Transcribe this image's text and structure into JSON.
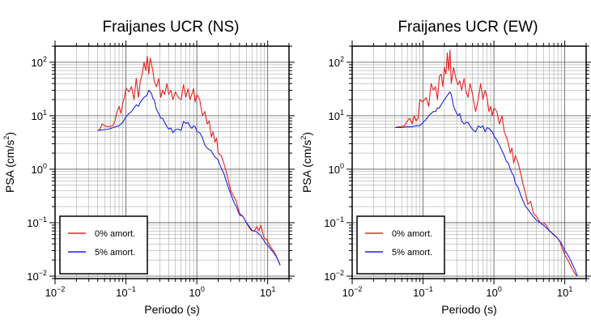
{
  "chart_data": [
    {
      "type": "line",
      "title": "Fraijanes UCR (NS)",
      "xlabel": "Periodo (s)",
      "ylabel_main": "PSA (cm/s",
      "ylabel_sup": "2",
      "ylabel_end": ")",
      "x_scale": "log",
      "y_scale": "log",
      "xlim": [
        0.01,
        20
      ],
      "ylim": [
        0.009,
        200
      ],
      "grid": true,
      "legend_position": "bottom-left",
      "x_ticks": [
        {
          "base": "10",
          "exp": "−2"
        },
        {
          "base": "10",
          "exp": "−1"
        },
        {
          "base": "10",
          "exp": "0"
        },
        {
          "base": "10",
          "exp": "1"
        }
      ],
      "y_ticks": [
        {
          "base": "10",
          "exp": "−2"
        },
        {
          "base": "10",
          "exp": "−1"
        },
        {
          "base": "10",
          "exp": "0"
        },
        {
          "base": "10",
          "exp": "1"
        },
        {
          "base": "10",
          "exp": "2"
        }
      ],
      "series": [
        {
          "name": "0% amort.",
          "color": "#e8231f",
          "x": [
            0.04,
            0.043,
            0.046,
            0.05,
            0.055,
            0.06,
            0.065,
            0.07,
            0.075,
            0.08,
            0.085,
            0.09,
            0.095,
            0.1,
            0.11,
            0.12,
            0.13,
            0.14,
            0.15,
            0.16,
            0.17,
            0.18,
            0.19,
            0.2,
            0.21,
            0.22,
            0.23,
            0.24,
            0.25,
            0.27,
            0.29,
            0.31,
            0.33,
            0.35,
            0.38,
            0.4,
            0.43,
            0.46,
            0.5,
            0.55,
            0.6,
            0.65,
            0.7,
            0.75,
            0.8,
            0.85,
            0.9,
            0.95,
            1.0,
            1.1,
            1.2,
            1.3,
            1.4,
            1.5,
            1.6,
            1.7,
            1.8,
            1.9,
            2.0,
            2.2,
            2.4,
            2.6,
            2.8,
            3.0,
            3.3,
            3.6,
            4.0,
            4.5,
            5.0,
            5.5,
            6.0,
            6.5,
            7.0,
            7.5,
            8.0,
            8.5,
            9.0,
            9.5,
            10.0,
            11.0,
            12.0,
            13.0,
            14.0,
            15.0
          ],
          "y": [
            5.3,
            5.6,
            7,
            6.5,
            6.3,
            6.3,
            6.5,
            8,
            12,
            15,
            11,
            17,
            22,
            33,
            28,
            35,
            20,
            50,
            22,
            45,
            60,
            100,
            70,
            130,
            60,
            120,
            90,
            70,
            45,
            35,
            50,
            22,
            30,
            25,
            40,
            25,
            30,
            20,
            28,
            22,
            20,
            38,
            22,
            32,
            20,
            25,
            32,
            18,
            25,
            20,
            10,
            12,
            7,
            8,
            4,
            5,
            3.2,
            3.8,
            2,
            1.8,
            1.3,
            0.9,
            0.6,
            0.4,
            0.32,
            0.25,
            0.15,
            0.13,
            0.1,
            0.08,
            0.07,
            0.07,
            0.085,
            0.07,
            0.09,
            0.065,
            0.05,
            0.05,
            0.045,
            0.035,
            0.03,
            0.025,
            0.02,
            0.016
          ]
        },
        {
          "name": "5% amort.",
          "color": "#1f23e0",
          "x": [
            0.04,
            0.05,
            0.06,
            0.07,
            0.08,
            0.09,
            0.1,
            0.11,
            0.12,
            0.13,
            0.14,
            0.15,
            0.16,
            0.17,
            0.18,
            0.19,
            0.2,
            0.21,
            0.22,
            0.23,
            0.24,
            0.25,
            0.27,
            0.29,
            0.31,
            0.33,
            0.35,
            0.38,
            0.4,
            0.43,
            0.46,
            0.5,
            0.55,
            0.6,
            0.65,
            0.7,
            0.75,
            0.8,
            0.85,
            0.9,
            0.95,
            1.0,
            1.1,
            1.2,
            1.3,
            1.4,
            1.5,
            1.6,
            1.7,
            1.8,
            1.9,
            2.0,
            2.2,
            2.4,
            2.6,
            2.8,
            3.0,
            3.3,
            3.6,
            4.0,
            4.5,
            5.0,
            5.5,
            6.0,
            6.5,
            7.0,
            7.5,
            8.0,
            8.5,
            9.0,
            9.5,
            10.0,
            11.0,
            12.0,
            13.0,
            14.0,
            15.0
          ],
          "y": [
            5.3,
            5.5,
            5.7,
            6.2,
            6.5,
            7.5,
            9.5,
            11,
            12,
            14,
            16,
            15,
            18,
            20,
            22,
            23,
            25,
            30,
            28,
            26,
            21,
            20,
            13,
            11,
            9,
            9,
            7.5,
            6.3,
            5.6,
            5.9,
            4.8,
            5.5,
            5.6,
            5.3,
            7.8,
            7.2,
            7.5,
            6.4,
            5.8,
            6.5,
            6.2,
            5.1,
            4.8,
            3.9,
            2.8,
            2.5,
            2.3,
            2.2,
            1.9,
            1.7,
            1.6,
            1.5,
            1.05,
            0.85,
            0.6,
            0.45,
            0.35,
            0.25,
            0.2,
            0.14,
            0.13,
            0.1,
            0.085,
            0.072,
            0.07,
            0.067,
            0.062,
            0.058,
            0.05,
            0.045,
            0.04,
            0.038,
            0.032,
            0.028,
            0.024,
            0.02,
            0.016
          ]
        }
      ]
    },
    {
      "type": "line",
      "title": "Fraijanes UCR (EW)",
      "xlabel": "Periodo (s)",
      "ylabel_main": "PSA (cm/s",
      "ylabel_sup": "2",
      "ylabel_end": ")",
      "x_scale": "log",
      "y_scale": "log",
      "xlim": [
        0.01,
        20
      ],
      "ylim": [
        0.009,
        200
      ],
      "grid": true,
      "legend_position": "bottom-left",
      "x_ticks": [
        {
          "base": "10",
          "exp": "−2"
        },
        {
          "base": "10",
          "exp": "−1"
        },
        {
          "base": "10",
          "exp": "0"
        },
        {
          "base": "10",
          "exp": "1"
        }
      ],
      "y_ticks": [
        {
          "base": "10",
          "exp": "−2"
        },
        {
          "base": "10",
          "exp": "−1"
        },
        {
          "base": "10",
          "exp": "0"
        },
        {
          "base": "10",
          "exp": "1"
        },
        {
          "base": "10",
          "exp": "2"
        }
      ],
      "series": [
        {
          "name": "0% amort.",
          "color": "#e8231f",
          "x": [
            0.04,
            0.045,
            0.05,
            0.055,
            0.06,
            0.065,
            0.07,
            0.075,
            0.08,
            0.085,
            0.09,
            0.1,
            0.11,
            0.12,
            0.13,
            0.14,
            0.15,
            0.16,
            0.17,
            0.18,
            0.19,
            0.2,
            0.21,
            0.22,
            0.23,
            0.24,
            0.25,
            0.27,
            0.29,
            0.31,
            0.33,
            0.35,
            0.38,
            0.4,
            0.43,
            0.46,
            0.5,
            0.55,
            0.6,
            0.65,
            0.7,
            0.75,
            0.8,
            0.85,
            0.9,
            0.95,
            1.0,
            1.1,
            1.2,
            1.3,
            1.4,
            1.5,
            1.6,
            1.7,
            1.8,
            1.9,
            2.0,
            2.2,
            2.4,
            2.6,
            2.8,
            3.0,
            3.3,
            3.6,
            4.0,
            4.5,
            5.0,
            5.5,
            6.0,
            6.5,
            7.0,
            7.5,
            8.0,
            8.5,
            9.0,
            9.5,
            10.0,
            11.0,
            12.0,
            13.0,
            14.0,
            15.0
          ],
          "y": [
            6,
            6.2,
            6.3,
            6.5,
            8,
            9,
            7,
            10,
            8,
            9,
            20,
            18,
            22,
            15,
            40,
            30,
            35,
            20,
            55,
            60,
            35,
            80,
            60,
            150,
            70,
            170,
            40,
            80,
            50,
            38,
            45,
            30,
            50,
            30,
            22,
            40,
            25,
            12,
            20,
            40,
            20,
            30,
            22,
            12,
            15,
            10,
            14,
            12,
            7,
            10,
            5,
            4,
            3,
            2,
            2.5,
            1.3,
            1.8,
            1.3,
            0.8,
            0.5,
            0.35,
            0.22,
            0.25,
            0.15,
            0.13,
            0.1,
            0.1,
            0.09,
            0.07,
            0.065,
            0.058,
            0.055,
            0.05,
            0.045,
            0.035,
            0.03,
            0.025,
            0.02,
            0.016,
            0.013,
            0.011,
            0.01
          ]
        },
        {
          "name": "5% amort.",
          "color": "#1f23e0",
          "x": [
            0.04,
            0.05,
            0.06,
            0.07,
            0.08,
            0.09,
            0.1,
            0.11,
            0.12,
            0.13,
            0.14,
            0.15,
            0.16,
            0.17,
            0.18,
            0.19,
            0.2,
            0.21,
            0.22,
            0.23,
            0.24,
            0.25,
            0.27,
            0.29,
            0.31,
            0.33,
            0.35,
            0.38,
            0.4,
            0.43,
            0.46,
            0.5,
            0.55,
            0.6,
            0.65,
            0.7,
            0.75,
            0.8,
            0.85,
            0.9,
            0.95,
            1.0,
            1.1,
            1.2,
            1.3,
            1.4,
            1.5,
            1.6,
            1.7,
            1.8,
            1.9,
            2.0,
            2.2,
            2.4,
            2.6,
            2.8,
            3.0,
            3.3,
            3.6,
            4.0,
            4.5,
            5.0,
            5.5,
            6.0,
            6.5,
            7.0,
            7.5,
            8.0,
            8.5,
            9.0,
            9.5,
            10.0,
            11.0,
            12.0,
            13.0,
            14.0,
            15.0
          ],
          "y": [
            6,
            6,
            6.2,
            6.2,
            6.5,
            6.5,
            7.5,
            8.5,
            10,
            11,
            12,
            12,
            14,
            14,
            16,
            18,
            20,
            22,
            24,
            26,
            28,
            25,
            15,
            12,
            10,
            11,
            8,
            7,
            7.5,
            7.5,
            6.5,
            5.5,
            5,
            6.5,
            6,
            6.5,
            5,
            6,
            5.8,
            5.3,
            5,
            4.2,
            3.5,
            2.8,
            2.2,
            1.8,
            1.4,
            1.3,
            1.0,
            0.85,
            0.75,
            0.55,
            0.45,
            0.32,
            0.25,
            0.2,
            0.18,
            0.15,
            0.13,
            0.11,
            0.1,
            0.09,
            0.08,
            0.072,
            0.065,
            0.06,
            0.055,
            0.05,
            0.045,
            0.04,
            0.035,
            0.03,
            0.025,
            0.02,
            0.016,
            0.013,
            0.01
          ]
        }
      ]
    }
  ]
}
